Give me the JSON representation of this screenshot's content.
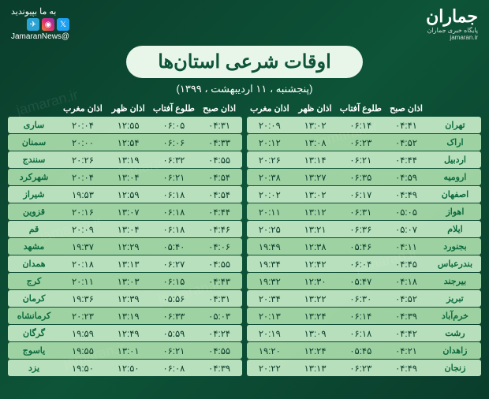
{
  "logo": {
    "text": "جماران",
    "sub": "پایگاه خبری جماران",
    "url": "jamaran.ir"
  },
  "social": {
    "label": "به ما بپیوندید",
    "handle": "@JamaranNews"
  },
  "title": "اوقات شرعی استان‌ها",
  "date": "(پنجشنبه ، ۱۱ اردیبهشت ، ۱۳۹۹)",
  "headers": [
    "اذان صبح",
    "طلوع آفتاب",
    "اذان ظهر",
    "اذان مغرب"
  ],
  "cityLabel": "",
  "right": [
    {
      "city": "تهران",
      "v": [
        "۰۴:۴۱",
        "۰۶:۱۴",
        "۱۳:۰۲",
        "۲۰:۰۹"
      ]
    },
    {
      "city": "اراک",
      "v": [
        "۰۴:۵۲",
        "۰۶:۲۳",
        "۱۳:۰۸",
        "۲۰:۱۲"
      ]
    },
    {
      "city": "اردبیل",
      "v": [
        "۰۴:۴۴",
        "۰۶:۲۱",
        "۱۳:۱۴",
        "۲۰:۲۶"
      ]
    },
    {
      "city": "ارومیه",
      "v": [
        "۰۴:۵۹",
        "۰۶:۳۵",
        "۱۳:۲۷",
        "۲۰:۳۸"
      ]
    },
    {
      "city": "اصفهان",
      "v": [
        "۰۴:۴۹",
        "۰۶:۱۷",
        "۱۳:۰۲",
        "۲۰:۰۲"
      ]
    },
    {
      "city": "اهواز",
      "v": [
        "۰۵:۰۵",
        "۰۶:۳۱",
        "۱۳:۱۲",
        "۲۰:۱۱"
      ]
    },
    {
      "city": "ایلام",
      "v": [
        "۰۵:۰۷",
        "۰۶:۳۶",
        "۱۳:۲۱",
        "۲۰:۲۵"
      ]
    },
    {
      "city": "بجنورد",
      "v": [
        "۰۴:۱۱",
        "۰۵:۴۶",
        "۱۲:۳۸",
        "۱۹:۴۹"
      ]
    },
    {
      "city": "بندرعباس",
      "v": [
        "۰۴:۴۵",
        "۰۶:۰۴",
        "۱۲:۴۲",
        "۱۹:۳۴"
      ]
    },
    {
      "city": "بیرجند",
      "v": [
        "۰۴:۱۸",
        "۰۵:۴۷",
        "۱۲:۳۰",
        "۱۹:۳۲"
      ]
    },
    {
      "city": "تبریز",
      "v": [
        "۰۴:۵۲",
        "۰۶:۳۰",
        "۱۳:۲۲",
        "۲۰:۳۴"
      ]
    },
    {
      "city": "خرم‌آباد",
      "v": [
        "۰۴:۳۹",
        "۰۶:۱۴",
        "۱۳:۲۴",
        "۲۰:۱۳"
      ]
    },
    {
      "city": "رشت",
      "v": [
        "۰۴:۴۲",
        "۰۶:۱۸",
        "۱۳:۰۹",
        "۲۰:۱۹"
      ]
    },
    {
      "city": "زاهدان",
      "v": [
        "۰۴:۲۱",
        "۰۵:۴۵",
        "۱۲:۲۴",
        "۱۹:۲۰"
      ]
    },
    {
      "city": "زنجان",
      "v": [
        "۰۴:۴۹",
        "۰۶:۲۳",
        "۱۳:۱۳",
        "۲۰:۲۲"
      ]
    }
  ],
  "left": [
    {
      "city": "ساری",
      "v": [
        "۰۴:۳۱",
        "۰۶:۰۵",
        "۱۲:۵۵",
        "۲۰:۰۴"
      ]
    },
    {
      "city": "سمنان",
      "v": [
        "۰۴:۳۳",
        "۰۶:۰۶",
        "۱۲:۵۴",
        "۲۰:۰۰"
      ]
    },
    {
      "city": "سنندج",
      "v": [
        "۰۴:۵۵",
        "۰۶:۳۲",
        "۱۳:۱۹",
        "۲۰:۲۶"
      ]
    },
    {
      "city": "شهرکرد",
      "v": [
        "۰۴:۵۴",
        "۰۶:۲۱",
        "۱۳:۰۴",
        "۲۰:۰۴"
      ]
    },
    {
      "city": "شیراز",
      "v": [
        "۰۴:۵۴",
        "۰۶:۱۸",
        "۱۲:۵۹",
        "۱۹:۵۳"
      ]
    },
    {
      "city": "قزوین",
      "v": [
        "۰۴:۴۴",
        "۰۶:۱۸",
        "۱۳:۰۷",
        "۲۰:۱۶"
      ]
    },
    {
      "city": "قم",
      "v": [
        "۰۴:۴۶",
        "۰۶:۱۸",
        "۱۳:۰۴",
        "۲۰:۰۹"
      ]
    },
    {
      "city": "مشهد",
      "v": [
        "۰۴:۰۶",
        "۰۵:۴۰",
        "۱۲:۲۹",
        "۱۹:۳۷"
      ]
    },
    {
      "city": "همدان",
      "v": [
        "۰۴:۵۵",
        "۰۶:۲۷",
        "۱۳:۱۳",
        "۲۰:۱۸"
      ]
    },
    {
      "city": "کرج",
      "v": [
        "۰۴:۴۳",
        "۰۶:۱۵",
        "۱۳:۰۳",
        "۲۰:۱۱"
      ]
    },
    {
      "city": "کرمان",
      "v": [
        "۰۴:۳۱",
        "۰۵:۵۶",
        "۱۲:۳۹",
        "۱۹:۳۶"
      ]
    },
    {
      "city": "کرمانشاه",
      "v": [
        "۰۵:۰۳",
        "۰۶:۳۳",
        "۱۳:۱۹",
        "۲۰:۲۳"
      ]
    },
    {
      "city": "گرگان",
      "v": [
        "۰۴:۲۴",
        "۰۵:۵۹",
        "۱۲:۴۹",
        "۱۹:۵۹"
      ]
    },
    {
      "city": "یاسوج",
      "v": [
        "۰۴:۵۵",
        "۰۶:۲۱",
        "۱۳:۰۱",
        "۱۹:۵۵"
      ]
    },
    {
      "city": "یزد",
      "v": [
        "۰۴:۳۹",
        "۰۶:۰۸",
        "۱۲:۵۰",
        "۱۹:۵۰"
      ]
    }
  ]
}
